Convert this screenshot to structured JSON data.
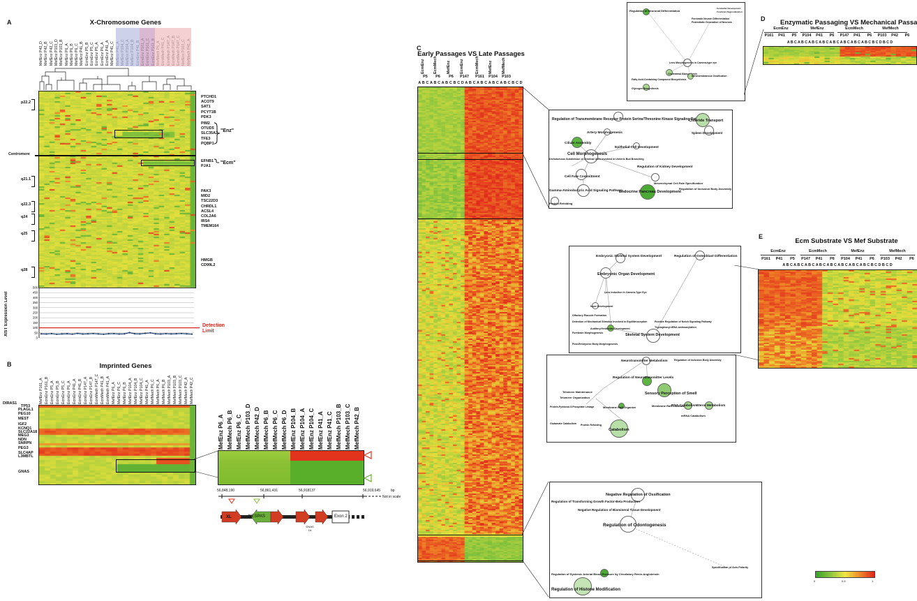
{
  "panelA": {
    "label": "A",
    "title": "X-Chromosome Genes",
    "samples": [
      "MefEnz P42_D",
      "MefEnz P42_B",
      "MefEnz P42_C",
      "MefEnz P103_D",
      "MefEnz P103_B",
      "MefEnz P6_A",
      "MefEnz P6_B",
      "MefEnz P6_C",
      "MefEnz P41_B",
      "EcmEnz P5_B",
      "EcmEnz P5_C",
      "EcmEnz P5_A",
      "EcmEnz P6_A",
      "EcmEnz P41_A",
      "MefEnz P41_C",
      "MefEnz P41_A",
      "MefEnz P104_C",
      "MefEnz P104_A",
      "MefEnz P104_B",
      "EcmEnz P41_B",
      "EcmEnz P161_A",
      "EcmEnz P161_C",
      "EcmEnz P161_B",
      "MefMech P6_A",
      "EcmMech P41_C",
      "EcmMech P147_A",
      "EcmMech P147_B",
      "EcmMech P147_C",
      "MefEnz P103_C",
      "MefMech P41_A"
    ],
    "bands": [
      "p22.2",
      "Centromere",
      "q21.1",
      "q22.3",
      "q24",
      "q25",
      "q28"
    ],
    "genes1": [
      "PTCHD1",
      "ACOT9",
      "SAT1",
      "PCYT1B",
      "PDK3"
    ],
    "genes2": [
      "PIM2",
      "OTUD5",
      "SLC35A2",
      "TFE3",
      "PQBP1"
    ],
    "genes3": [
      "EFNB1",
      "PJA1"
    ],
    "genes4": [
      "PAK3",
      "MID2",
      "TSC22D3",
      "CHRDL1",
      "ACSL4",
      "COL2A6",
      "IRS4",
      "TMEM164"
    ],
    "genes5": [
      "HMGB",
      "CD99L2"
    ],
    "enz": "\"Enz\"",
    "ecm": "\"Ecm\"",
    "xist_ylabel": "XIST Expression Level",
    "xist_ticks": [
      "500",
      "450",
      "400",
      "350",
      "300",
      "250",
      "200",
      "150",
      "100",
      "50",
      "0"
    ],
    "detection_a": "Detection",
    "detection_b": "Limit",
    "xist_values": [
      40,
      38,
      42,
      36,
      39,
      41,
      37,
      44,
      38,
      40,
      43,
      39,
      36,
      41,
      42,
      38,
      40,
      52,
      41,
      39,
      45,
      50,
      40,
      38,
      42,
      39,
      41,
      43,
      40,
      37
    ],
    "colors": {
      "red": "#e8371e",
      "green": "#4caf2a",
      "yellow": "#e7e03a",
      "line": "#1b3a6b",
      "detect": "#d9261c"
    }
  },
  "panelB": {
    "label": "B",
    "title": "Imprinted Genes",
    "samples": [
      "MefEnz P161_A",
      "EcmEnz P161_B",
      "EcmEnz P5_A",
      "EcmEnz P5_B",
      "EcmEnz P5_C",
      "EcmEnz P6_A",
      "EcmEnz P41_A",
      "EcmEnz P41_B",
      "EcmEnz P147_A",
      "EcmEnz P147_B",
      "EcmMech P147_C",
      "EcmMech P41_B",
      "EcmMech P41_A",
      "MefEnz P6_A",
      "MefEnz P6_C",
      "MefEnz P6_B",
      "MefEnz P104_A",
      "MefEnz P104_B",
      "MefEnz P104_C",
      "MefEnz P41_A",
      "MefMech P6_C",
      "MefMech P6_A",
      "MefMech P6_B",
      "MefMech P103_A",
      "MefMech P103_B",
      "MefMech P103_C",
      "MefMech P42_A",
      "MefMech P42_C"
    ],
    "genes": [
      "DIRAS1",
      "TP53",
      "PLAGL1",
      "PEG10",
      "MEST",
      "IGF2",
      "KCNQ1",
      "SLC22A18",
      "MEG3",
      "NDN",
      "SNRPN",
      "PEG3",
      "SLC4AP",
      "L3MBTL",
      "GNAS"
    ],
    "zoom_samples": [
      "MefEnz P6_A",
      "MefMech P6_B",
      "MefEnz P6_C",
      "MefMech P103_D",
      "MefMech P42_D",
      "MefMech P6_B",
      "MefMech P6_C",
      "MefMech P6_D",
      "MefEnz P104_B",
      "MefEnz P104_A",
      "MefEnz P104_C",
      "MefEnz P41_A",
      "MefEnz P41_C",
      "MefMech P103_B",
      "MefMech P103_C",
      "MefMech P42_B"
    ],
    "coords": [
      "56,848,190",
      "56,861,431",
      "56,918137",
      "56,919,645"
    ],
    "bp": "bp",
    "notscale": "Not in scale",
    "nespas": "NESPAS",
    "exon2": "Exon 2",
    "gnas1a": "GNAS 1A",
    "xl": "XL"
  },
  "panelC": {
    "label": "C",
    "title": "Early Passages VS Late Passages",
    "groups": [
      "EcmEnz",
      "EcmMech",
      "MefEnz",
      "EcmEnz",
      "EcmMech",
      "MefEnz",
      "MefMech"
    ],
    "passages": [
      "P5",
      "P6",
      "P6",
      "P147",
      "P161",
      "P104",
      "P103"
    ],
    "cols": "A B C A B C A B C B C D A B C A B C A B C A B C B C D"
  },
  "netTop": {
    "nodes": [
      "Regulation of Neuronal Differentiation",
      "Forebrain Neuron Differentiation",
      "Postmitotic Generation of Neurons",
      "Lens Morphogenesis in Camera-type eye",
      "Cholesterol Biosynthesis",
      "Intramembranous Ossification",
      "Fatty Acid-Containing Compound Biosynthesis",
      "Glycogen Biosynthesis",
      "Cerebellar Development",
      "Forebrain Regionalization"
    ]
  },
  "net1": {
    "nodes": [
      "Regulation of Transmembrane Receptor Protein Serine/Threonine Kinase Signaling Pathway",
      "Chloride Transport",
      "Spleen Development",
      "Artery Morphogenesis",
      "Cilium Assembly",
      "Epithelial Cell Development",
      "Cell Morphogenesis",
      "Dichotomous Subdivision of Terminal Units Involved in Ureteric Bud Branching",
      "Regulation of Kidney Development",
      "Cell Fate Commitment",
      "Mesenchymal Cell Fate Specification",
      "Regulation of Inclusion Body Assembly",
      "Gamma-Aminobutyric Acid Signaling Pathway",
      "Endocrine Pancreas Development",
      "Protein Refolding"
    ]
  },
  "net2": {
    "nodes": [
      "Embryonic Skeletal System Development",
      "Regulation of Osteoblast Differentiation",
      "Embryonic Organ Development",
      "Lens Induction in Camera-Type Eye",
      "Nose Development",
      "Olfactory Placode Formation",
      "Detection of Mechanical Stimulus Involved in Equilibrioception",
      "Positive Regulation of Notch Signaling Pathway",
      "Tryptophanyl-tRNA aminoacylation",
      "Auditory/Vestibular Development",
      "Forebrain Morphogenesis",
      "Skeletal System Development",
      "Post-Embryonic Body Morphogenesis"
    ]
  },
  "net3": {
    "nodes": [
      "Neurotransmitter Metabolism",
      "Regulation of Inclusion Body Assembly",
      "Regulation of Neurotransmitter Levels",
      "Telomere Maintenance",
      "Sensory Perception of Smell",
      "Telomere Organization",
      "Protein-Pyridoxal-5-Phosphate Linkage",
      "Membrane Raft Organize",
      "Membrane Raft Localization",
      "RNA Catabolism",
      "Sterol Metabolism",
      "mRNA Catabolism",
      "Glutamate Catabolism",
      "Protein Refolding",
      "Catabolism"
    ]
  },
  "net4": {
    "nodes": [
      "Negative Regulation of Ossification",
      "Regulation of Transforming Growth Factor-Beta Production",
      "Negative Regulation of Biomineral Tissue Development",
      "Regulation of Odontogenesis",
      "Specification of Axis Polarity",
      "Regulation of Systemic Arterial Blood Pressure by Circulatory Renin-Angiotensin",
      "Regulation of Histone Modification"
    ]
  },
  "panelD": {
    "label": "D",
    "title": "Enzymatic Passaging VS Mechanical Passaging",
    "groups": [
      "EcmEnz",
      "MefEnz",
      "EcmMech",
      "MefMech"
    ],
    "passages": [
      "P161",
      "P41",
      "P5",
      "P104",
      "P41",
      "P6",
      "P147",
      "P41",
      "P6",
      "P103",
      "P42",
      "P6"
    ],
    "cols": "A B C A B C A B C A B C A B C A B C A B C A B C B C D B C D"
  },
  "panelE": {
    "label": "E",
    "title": "Ecm Substrate VS Mef Substrate",
    "groups": [
      "EcmEnz",
      "EcmMech",
      "MefEnz",
      "MefMech"
    ],
    "passages": [
      "P161",
      "P41",
      "P5",
      "P147",
      "P41",
      "P6",
      "P104",
      "P41",
      "P6",
      "P103",
      "P42",
      "P6"
    ],
    "cols": "A B C A B C A B C A B C A B C A B C A B C A B C B C D B C D"
  },
  "scale": {
    "ticks": [
      "0",
      "0.5",
      "1"
    ]
  }
}
